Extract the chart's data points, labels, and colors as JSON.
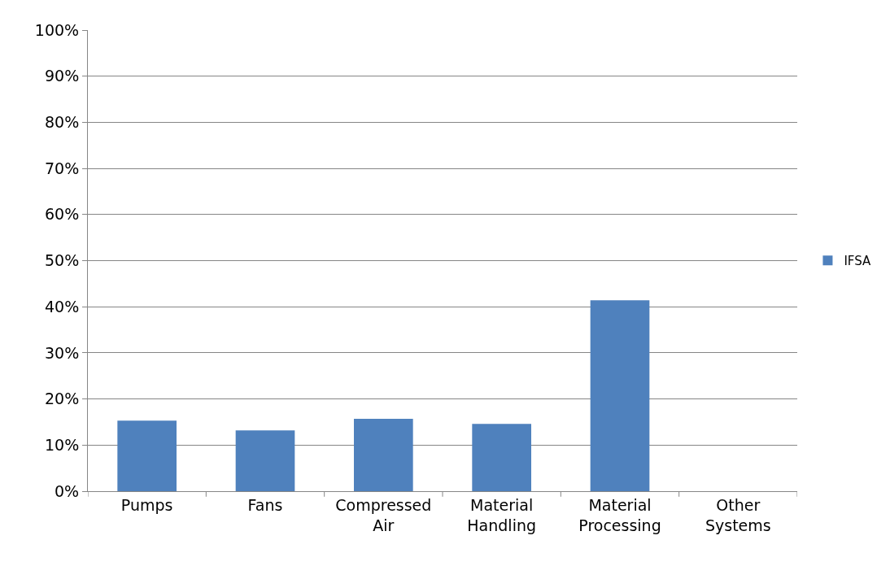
{
  "chart_data": {
    "type": "bar",
    "categories": [
      "Pumps",
      "Fans",
      "Compressed Air",
      "Material Handling",
      "Material Processing",
      "Other Systems"
    ],
    "series": [
      {
        "name": "IFSA",
        "color": "#4f81bd",
        "values": [
          15.3,
          13.2,
          15.7,
          14.6,
          41.4,
          0
        ]
      }
    ],
    "ylim": [
      0,
      100
    ],
    "yticks": [
      {
        "value": 0,
        "label": "0%"
      },
      {
        "value": 10,
        "label": "10%"
      },
      {
        "value": 20,
        "label": "20%"
      },
      {
        "value": 30,
        "label": "30%"
      },
      {
        "value": 40,
        "label": "40%"
      },
      {
        "value": 50,
        "label": "50%"
      },
      {
        "value": 60,
        "label": "60%"
      },
      {
        "value": 70,
        "label": "70%"
      },
      {
        "value": 80,
        "label": "80%"
      },
      {
        "value": 90,
        "label": "90%"
      },
      {
        "value": 100,
        "label": "100%"
      }
    ],
    "grid": "y",
    "legend": "right"
  }
}
